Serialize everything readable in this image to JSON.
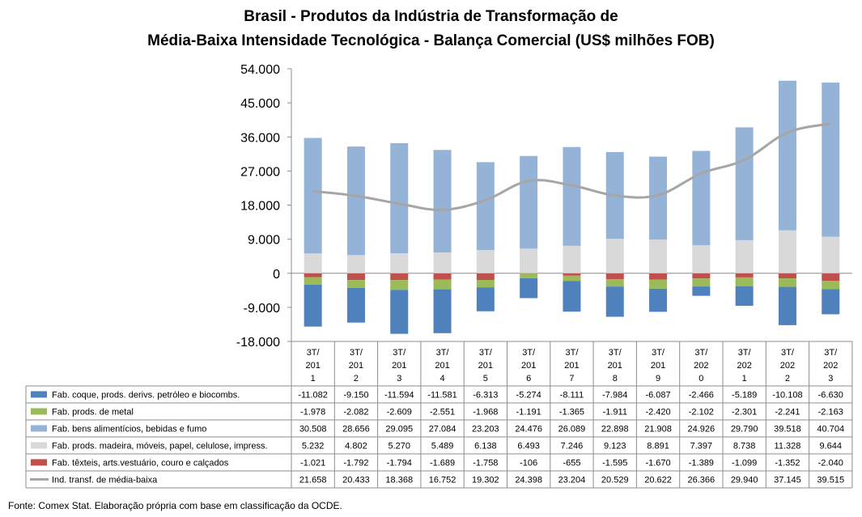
{
  "title_line1": "Brasil - Produtos da Indústria de Transformação de",
  "title_line2": "Média-Baixa Intensidade Tecnológica - Balança Comercial (US$ milhões FOB)",
  "source": "Fonte: Comex Stat. Elaboração própria com base em classificação da OCDE.",
  "chart_data": {
    "type": "bar",
    "stacked": true,
    "title": "Brasil - Produtos da Indústria de Transformação de Média-Baixa Intensidade Tecnológica - Balança Comercial (US$ milhões FOB)",
    "categories": [
      [
        "3T/",
        "201",
        "1"
      ],
      [
        "3T/",
        "201",
        "2"
      ],
      [
        "3T/",
        "201",
        "3"
      ],
      [
        "3T/",
        "201",
        "4"
      ],
      [
        "3T/",
        "201",
        "5"
      ],
      [
        "3T/",
        "201",
        "6"
      ],
      [
        "3T/",
        "201",
        "7"
      ],
      [
        "3T/",
        "201",
        "8"
      ],
      [
        "3T/",
        "201",
        "9"
      ],
      [
        "3T/",
        "202",
        "0"
      ],
      [
        "3T/",
        "202",
        "1"
      ],
      [
        "3T/",
        "202",
        "2"
      ],
      [
        "3T/",
        "202",
        "3"
      ]
    ],
    "ylim": [
      -18000,
      54000
    ],
    "yticks": [
      54000,
      45000,
      36000,
      27000,
      18000,
      9000,
      0,
      -9000,
      -18000
    ],
    "ytick_labels": [
      "54.000",
      "45.000",
      "36.000",
      "27.000",
      "18.000",
      "9.000",
      "0",
      "-9.000",
      "-18.000"
    ],
    "grid": false,
    "legend": "table",
    "stack_order": [
      4,
      1,
      0,
      3,
      2
    ],
    "series": [
      {
        "name": "Fab. coque, prods. derivs. petróleo e biocombs.",
        "kind": "bar",
        "color": "#4f81bd",
        "values": [
          -11082,
          -9150,
          -11594,
          -11581,
          -6313,
          -5274,
          -8111,
          -7984,
          -6087,
          -2466,
          -5189,
          -10108,
          -6630
        ],
        "labels": [
          "-11.082",
          "-9.150",
          "-11.594",
          "-11.581",
          "-6.313",
          "-5.274",
          "-8.111",
          "-7.984",
          "-6.087",
          "-2.466",
          "-5.189",
          "-10.108",
          "-6.630"
        ]
      },
      {
        "name": "Fab. prods. de metal",
        "kind": "bar",
        "color": "#9bbb59",
        "values": [
          -1978,
          -2082,
          -2609,
          -2551,
          -1968,
          -1191,
          -1365,
          -1911,
          -2420,
          -2102,
          -2301,
          -2241,
          -2163
        ],
        "labels": [
          "-1.978",
          "-2.082",
          "-2.609",
          "-2.551",
          "-1.968",
          "-1.191",
          "-1.365",
          "-1.911",
          "-2.420",
          "-2.102",
          "-2.301",
          "-2.241",
          "-2.163"
        ]
      },
      {
        "name": "Fab. bens alimentícios, bebidas e fumo",
        "kind": "bar",
        "color": "#95b3d7",
        "values": [
          30508,
          28656,
          29095,
          27084,
          23203,
          24476,
          26089,
          22898,
          21908,
          24926,
          29790,
          39518,
          40704
        ],
        "labels": [
          "30.508",
          "28.656",
          "29.095",
          "27.084",
          "23.203",
          "24.476",
          "26.089",
          "22.898",
          "21.908",
          "24.926",
          "29.790",
          "39.518",
          "40.704"
        ]
      },
      {
        "name": "Fab. prods. madeira, móveis, papel, celulose, impress.",
        "kind": "bar",
        "color": "#d9d9d9",
        "values": [
          5232,
          4802,
          5270,
          5489,
          6138,
          6493,
          7246,
          9123,
          8891,
          7397,
          8738,
          11328,
          9644
        ],
        "labels": [
          "5.232",
          "4.802",
          "5.270",
          "5.489",
          "6.138",
          "6.493",
          "7.246",
          "9.123",
          "8.891",
          "7.397",
          "8.738",
          "11.328",
          "9.644"
        ]
      },
      {
        "name": "Fab. têxteis, arts.vestuário, couro e calçados",
        "kind": "bar",
        "color": "#c0504d",
        "values": [
          -1021,
          -1792,
          -1794,
          -1689,
          -1758,
          -106,
          -655,
          -1595,
          -1670,
          -1389,
          -1099,
          -1352,
          -2040
        ],
        "labels": [
          "-1.021",
          "-1.792",
          "-1.794",
          "-1.689",
          "-1.758",
          "-106",
          "-655",
          "-1.595",
          "-1.670",
          "-1.389",
          "-1.099",
          "-1.352",
          "-2.040"
        ]
      },
      {
        "name": "Ind. transf. de média-baixa",
        "kind": "line",
        "color": "#a6a6a6",
        "values": [
          21658,
          20433,
          18368,
          16752,
          19302,
          24398,
          23204,
          20529,
          20622,
          26366,
          29940,
          37145,
          39515
        ],
        "labels": [
          "21.658",
          "20.433",
          "18.368",
          "16.752",
          "19.302",
          "24.398",
          "23.204",
          "20.529",
          "20.622",
          "26.366",
          "29.940",
          "37.145",
          "39.515"
        ]
      }
    ]
  }
}
